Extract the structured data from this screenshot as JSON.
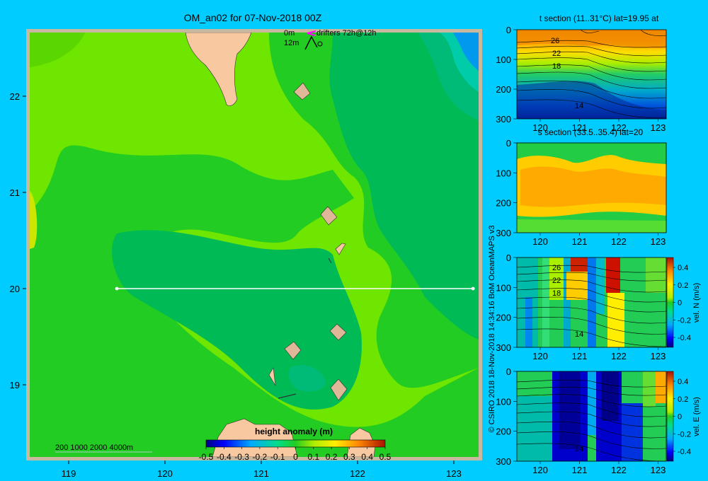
{
  "main_map": {
    "title": "OM_an02 for 07-Nov-2018 00Z",
    "legend_0m": "0m",
    "legend_drifters": "drifters 72h@12h",
    "legend_12m": "12m",
    "x_ticks": [
      "119",
      "120",
      "121",
      "122",
      "123"
    ],
    "y_ticks": [
      "22",
      "21",
      "20",
      "19"
    ],
    "depth_legend": "200  1000  2000  4000m",
    "colorbar_title": "height anomaly  (m)",
    "colorbar_ticks": [
      "-0.5",
      "-0.4",
      "-0.3",
      "-0.2",
      "-0.1",
      "0",
      "0.1",
      "0.2",
      "0.3",
      "0.4",
      "0.5"
    ],
    "section_line": {
      "lat": 20,
      "lon_start": 119.5,
      "lon_end": 123.2
    }
  },
  "credit": "© CSIRO 2018   18-Nov-2018 14:34:16 BoM OceanMAPS v3",
  "panels": {
    "t_section": {
      "title": "t section (11..31°C) lat=19.95 at",
      "y_ticks": [
        "0",
        "100",
        "200",
        "300"
      ],
      "x_ticks": [
        "120",
        "121",
        "122",
        "123"
      ],
      "contour_labels": [
        "26",
        "22",
        "18",
        "14"
      ]
    },
    "s_section": {
      "title": "s section (33.5..35.4) lat=20",
      "y_ticks": [
        "0",
        "100",
        "200",
        "300"
      ],
      "x_ticks": [
        "120",
        "121",
        "122",
        "123"
      ]
    },
    "vn_section": {
      "y_ticks": [
        "0",
        "100",
        "200",
        "300"
      ],
      "x_ticks": [
        "120",
        "121",
        "122",
        "123"
      ],
      "contour_labels": [
        "26",
        "22",
        "18",
        "14"
      ],
      "cbar_label": "vel. N  (m/s)",
      "cbar_ticks": [
        "0.4",
        "0.2",
        "0",
        "-0.2",
        "-0.4"
      ]
    },
    "ve_section": {
      "y_ticks": [
        "0",
        "100",
        "200",
        "300"
      ],
      "x_ticks": [
        "120",
        "121",
        "122",
        "123"
      ],
      "contour_labels": [
        "14"
      ],
      "cbar_label": "vel. E  (m/s)",
      "cbar_ticks": [
        "0.4",
        "0.2",
        "0",
        "-0.2",
        "-0.4"
      ]
    }
  },
  "colors": {
    "background": "#00ccff",
    "ocean_light": "#6ee600",
    "ocean_mid": "#22cc22",
    "ocean_dark": "#00bb55",
    "ocean_teal": "#00bb77",
    "land": "#f8c8a0",
    "frame": "#c8b8a0"
  }
}
